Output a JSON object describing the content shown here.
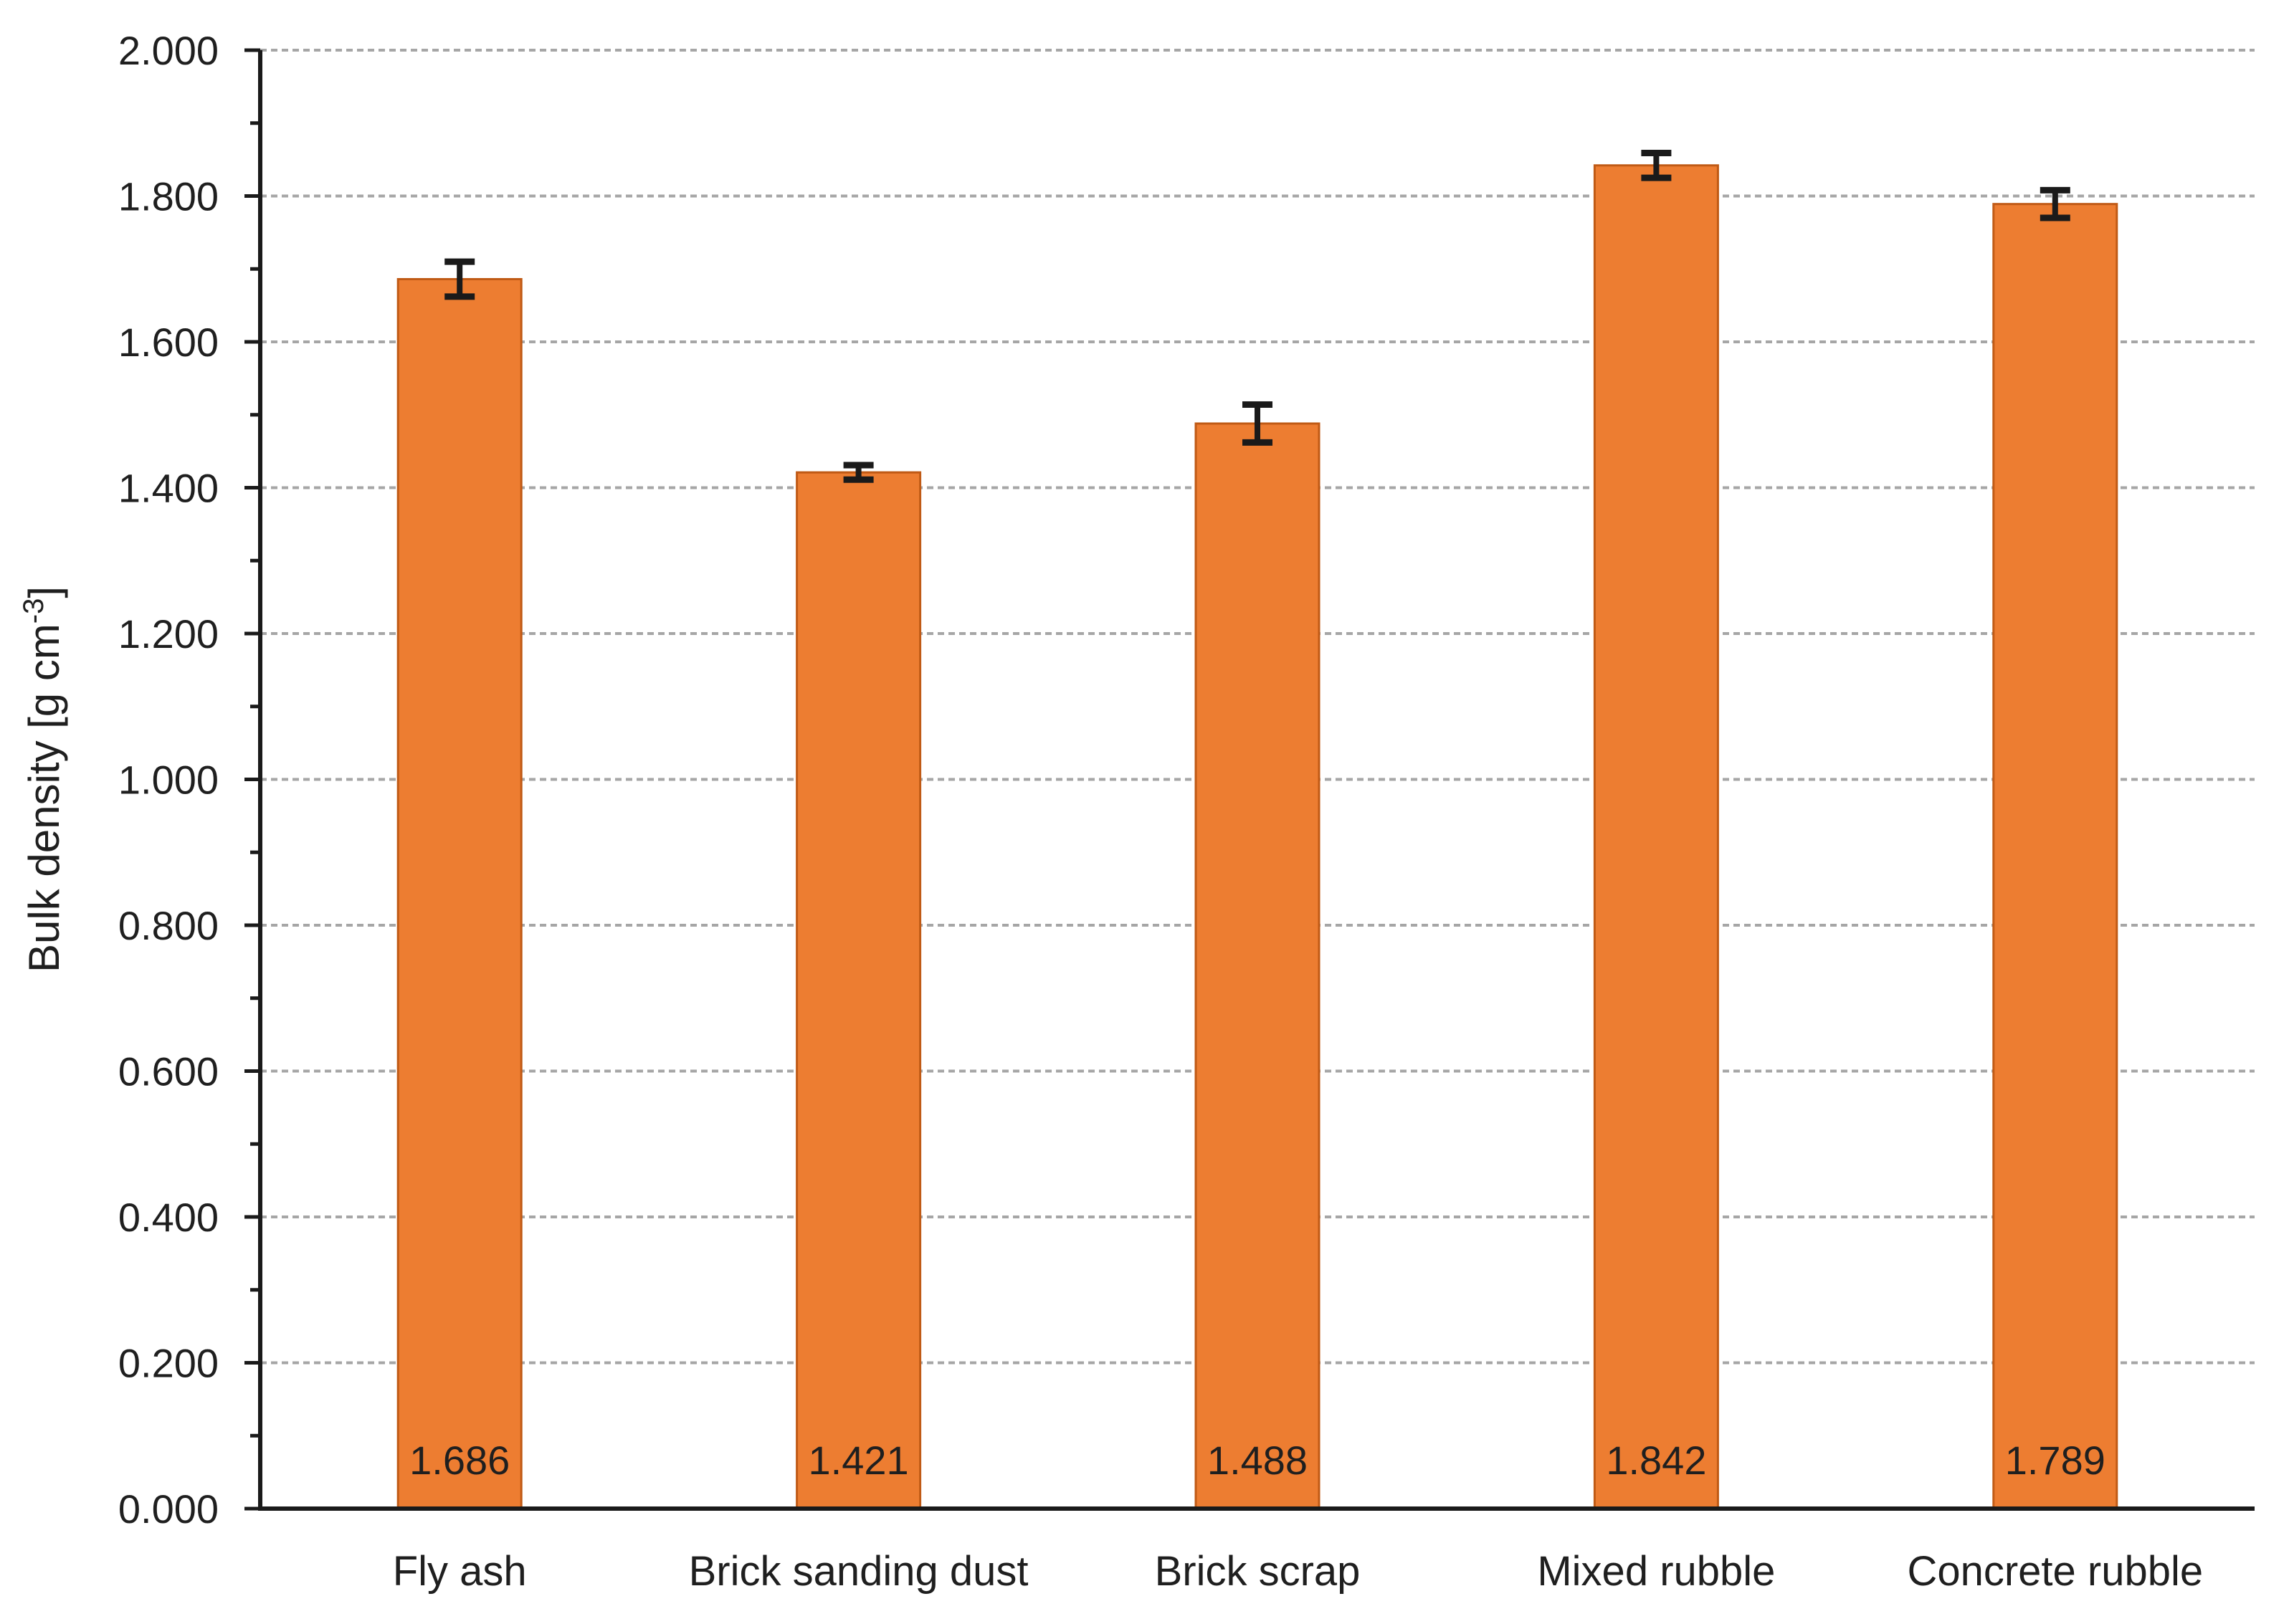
{
  "chart_data": {
    "type": "bar",
    "title": "",
    "ylabel": "Bulk density [g cm⁻³]",
    "ylabel_parts": {
      "base": "Bulk density [g cm",
      "superscript": "-3",
      "close": "]"
    },
    "xlabel": "",
    "categories": [
      "Fly ash",
      "Brick sanding dust",
      "Brick scrap",
      "Mixed rubble",
      "Concrete rubble"
    ],
    "values": [
      1.686,
      1.421,
      1.488,
      1.842,
      1.789
    ],
    "errors": [
      0.024,
      0.01,
      0.026,
      0.017,
      0.019
    ],
    "data_labels": [
      "1.686",
      "1.421",
      "1.488",
      "1.842",
      "1.789"
    ],
    "ylim": [
      0,
      2.0
    ],
    "y_major_step": 0.2,
    "y_minor_step": 0.1,
    "y_tick_labels": [
      "0.000",
      "0.200",
      "0.400",
      "0.600",
      "0.800",
      "1.000",
      "1.200",
      "1.400",
      "1.600",
      "1.800",
      "2.000"
    ],
    "grid": "major-horizontal-dashed",
    "legend": "none",
    "colors": {
      "bar_fill": "#ED7D31",
      "bar_border": "#C05A15",
      "error_bar": "#1a1a1a",
      "axis": "#1a1a1a",
      "gridline": "#a6a6a6",
      "text": "#1f1f1f",
      "background": "#ffffff"
    }
  }
}
